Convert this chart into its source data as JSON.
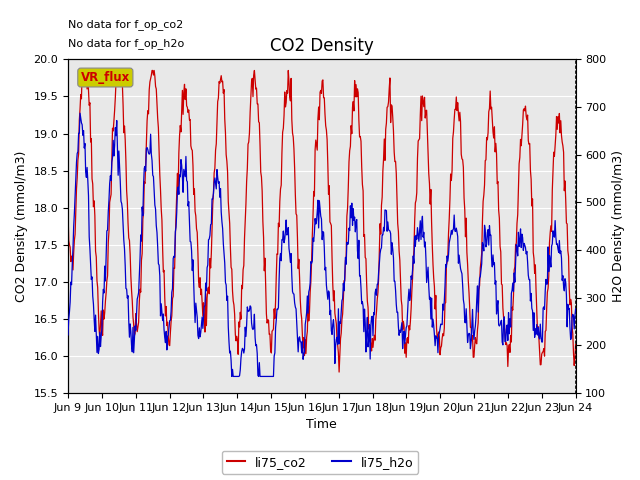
{
  "title": "CO2 Density",
  "xlabel": "Time",
  "ylabel_left": "CO2 Density (mmol/m3)",
  "ylabel_right": "H2O Density (mmol/m3)",
  "no_data_text1": "No data for f_op_co2",
  "no_data_text2": "No data for f_op_h2o",
  "vr_flux_label": "VR_flux",
  "ylim_left": [
    15.5,
    20.0
  ],
  "ylim_right": [
    100,
    800
  ],
  "legend_labels": [
    "li75_co2",
    "li75_h2o"
  ],
  "co2_color": "#cc0000",
  "h2o_color": "#0000cc",
  "bg_color": "#e8e8e8",
  "vr_flux_bg": "#cccc00",
  "vr_flux_text_color": "#cc0000",
  "grid_color": "#ffffff",
  "x_tick_labels": [
    "Jun 9",
    "Jun 10",
    "Jun 11",
    "Jun 12",
    "Jun 13",
    "Jun 14",
    "Jun 15",
    "Jun 16",
    "Jun 17",
    "Jun 18",
    "Jun 19",
    "Jun 20",
    "Jun 21",
    "Jun 22",
    "Jun 23",
    "Jun 24"
  ],
  "title_fontsize": 12,
  "axis_label_fontsize": 9,
  "tick_fontsize": 8,
  "legend_fontsize": 9,
  "annotation_fontsize": 8,
  "figsize": [
    6.4,
    4.8
  ],
  "dpi": 100
}
